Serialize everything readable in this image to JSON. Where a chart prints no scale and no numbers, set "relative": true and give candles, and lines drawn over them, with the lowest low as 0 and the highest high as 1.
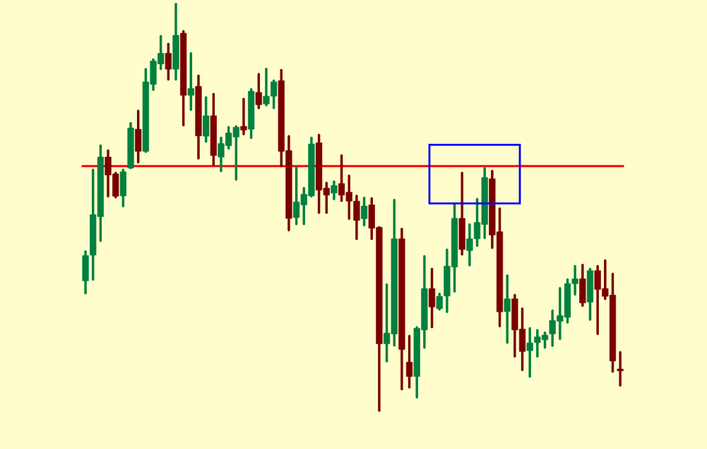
{
  "chart_data": {
    "type": "candlestick",
    "relative": true,
    "categories": [
      null,
      null,
      null,
      null,
      null,
      null,
      null,
      null,
      null,
      null,
      null,
      null,
      null,
      null,
      null,
      null,
      null,
      null,
      null,
      null,
      null,
      null,
      null,
      null,
      null,
      null,
      null,
      null,
      null,
      null,
      null,
      null,
      null,
      null,
      null,
      null,
      null,
      null,
      null,
      null,
      null,
      null,
      null,
      null,
      null,
      null,
      null,
      null,
      null,
      null,
      null,
      null,
      null,
      null,
      null,
      null,
      null,
      null,
      null,
      null,
      null,
      null,
      null,
      null,
      null,
      null,
      null,
      null,
      null,
      null,
      null,
      null
    ],
    "ohlc": [
      [
        0.32,
        0.392,
        0.29,
        0.382
      ],
      [
        0.383,
        0.592,
        0.323,
        0.482
      ],
      [
        0.477,
        0.651,
        0.418,
        0.623
      ],
      [
        0.623,
        0.639,
        0.527,
        0.579
      ],
      [
        0.582,
        0.584,
        0.525,
        0.527
      ],
      [
        0.528,
        0.592,
        0.503,
        0.587
      ],
      [
        0.596,
        0.706,
        0.596,
        0.694
      ],
      [
        0.691,
        0.736,
        0.61,
        0.637
      ],
      [
        0.637,
        0.838,
        0.636,
        0.807
      ],
      [
        0.801,
        0.862,
        0.788,
        0.858
      ],
      [
        0.851,
        0.919,
        0.839,
        0.877
      ],
      [
        0.877,
        0.9,
        0.813,
        0.838
      ],
      [
        0.838,
        1.0,
        0.813,
        0.921
      ],
      [
        0.926,
        0.931,
        0.701,
        0.774
      ],
      [
        0.774,
        0.877,
        0.739,
        0.791
      ],
      [
        0.796,
        0.822,
        0.62,
        0.675
      ],
      [
        0.674,
        0.769,
        0.661,
        0.724
      ],
      [
        0.724,
        0.777,
        0.604,
        0.627
      ],
      [
        0.623,
        0.67,
        0.589,
        0.656
      ],
      [
        0.651,
        0.696,
        0.644,
        0.682
      ],
      [
        0.672,
        0.698,
        0.568,
        0.696
      ],
      [
        0.698,
        0.765,
        0.679,
        0.689
      ],
      [
        0.691,
        0.789,
        0.67,
        0.784
      ],
      [
        0.781,
        0.826,
        0.743,
        0.751
      ],
      [
        0.753,
        0.839,
        0.75,
        0.772
      ],
      [
        0.772,
        0.81,
        0.743,
        0.807
      ],
      [
        0.81,
        0.836,
        0.601,
        0.637
      ],
      [
        0.639,
        0.674,
        0.444,
        0.473
      ],
      [
        0.475,
        0.598,
        0.459,
        0.513
      ],
      [
        0.506,
        0.547,
        0.459,
        0.532
      ],
      [
        0.528,
        0.67,
        0.527,
        0.655
      ],
      [
        0.658,
        0.677,
        0.487,
        0.542
      ],
      [
        0.547,
        0.56,
        0.487,
        0.53
      ],
      [
        0.535,
        0.563,
        0.52,
        0.553
      ],
      [
        0.558,
        0.627,
        0.516,
        0.53
      ],
      [
        0.537,
        0.577,
        0.472,
        0.515
      ],
      [
        0.515,
        0.528,
        0.423,
        0.468
      ],
      [
        0.472,
        0.523,
        0.456,
        0.503
      ],
      [
        0.506,
        0.522,
        0.423,
        0.449
      ],
      [
        0.451,
        0.451,
        0.0,
        0.166
      ],
      [
        0.166,
        0.311,
        0.123,
        0.192
      ],
      [
        0.19,
        0.518,
        0.162,
        0.423
      ],
      [
        0.423,
        0.447,
        0.055,
        0.152
      ],
      [
        0.121,
        0.185,
        0.059,
        0.086
      ],
      [
        0.086,
        0.206,
        0.035,
        0.204
      ],
      [
        0.2,
        0.38,
        0.157,
        0.301
      ],
      [
        0.301,
        0.349,
        0.207,
        0.256
      ],
      [
        0.252,
        0.288,
        0.25,
        0.282
      ],
      [
        0.283,
        0.396,
        0.244,
        0.356
      ],
      [
        0.354,
        0.509,
        0.294,
        0.473
      ],
      [
        0.473,
        0.584,
        0.385,
        0.397
      ],
      [
        0.394,
        0.458,
        0.358,
        0.423
      ],
      [
        0.423,
        0.52,
        0.406,
        0.463
      ],
      [
        0.458,
        0.596,
        0.425,
        0.573
      ],
      [
        0.57,
        0.589,
        0.401,
        0.432
      ],
      [
        0.44,
        0.497,
        0.209,
        0.244
      ],
      [
        0.245,
        0.333,
        0.169,
        0.276
      ],
      [
        0.276,
        0.285,
        0.135,
        0.2
      ],
      [
        0.202,
        0.252,
        0.102,
        0.147
      ],
      [
        0.149,
        0.204,
        0.086,
        0.168
      ],
      [
        0.169,
        0.199,
        0.135,
        0.183
      ],
      [
        0.176,
        0.193,
        0.157,
        0.187
      ],
      [
        0.19,
        0.247,
        0.161,
        0.223
      ],
      [
        0.221,
        0.302,
        0.178,
        0.235
      ],
      [
        0.231,
        0.323,
        0.218,
        0.313
      ],
      [
        0.313,
        0.356,
        0.287,
        0.325
      ],
      [
        0.325,
        0.359,
        0.259,
        0.266
      ],
      [
        0.268,
        0.349,
        0.225,
        0.345
      ],
      [
        0.345,
        0.356,
        0.19,
        0.299
      ],
      [
        0.301,
        0.37,
        0.276,
        0.282
      ],
      [
        0.285,
        0.337,
        0.098,
        0.124
      ],
      [
        0.104,
        0.145,
        0.064,
        0.1
      ]
    ],
    "colors": [
      "#008040",
      "#008040",
      "#008040",
      "#7a0000",
      "#7a0000",
      "#008040",
      "#008040",
      "#7a0000",
      "#008040",
      "#008040",
      "#008040",
      "#7a0000",
      "#008040",
      "#7a0000",
      "#008040",
      "#7a0000",
      "#008040",
      "#7a0000",
      "#008040",
      "#008040",
      "#008040",
      "#7a0000",
      "#008040",
      "#7a0000",
      "#008040",
      "#008040",
      "#7a0000",
      "#7a0000",
      "#008040",
      "#008040",
      "#008040",
      "#7a0000",
      "#7a0000",
      "#008040",
      "#7a0000",
      "#7a0000",
      "#7a0000",
      "#008040",
      "#7a0000",
      "#7a0000",
      "#008040",
      "#008040",
      "#7a0000",
      "#7a0000",
      "#008040",
      "#008040",
      "#7a0000",
      "#008040",
      "#008040",
      "#008040",
      "#7a0000",
      "#008040",
      "#008040",
      "#008040",
      "#7a0000",
      "#7a0000",
      "#008040",
      "#7a0000",
      "#7a0000",
      "#008040",
      "#008040",
      "#008040",
      "#008040",
      "#008040",
      "#008040",
      "#008040",
      "#7a0000",
      "#008040",
      "#7a0000",
      "#7a0000",
      "#7a0000",
      "#7a0000"
    ],
    "ref_lines": [
      {
        "axis": "y",
        "value": 0.601,
        "color": "#ff0000"
      }
    ]
  }
}
